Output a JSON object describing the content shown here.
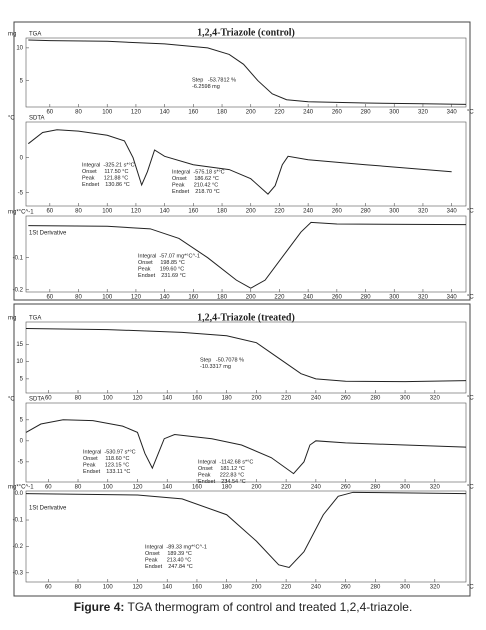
{
  "chart_data": [
    {
      "type": "line",
      "title": "1,2,4-Triazole (control)",
      "ylabel": "mg",
      "xlabel": "°C",
      "xlim": [
        43.4,
        350
      ],
      "xticks": [
        60,
        80,
        100,
        120,
        140,
        160,
        180,
        200,
        220,
        240,
        260,
        280,
        300,
        320,
        340
      ],
      "ylim": [
        1,
        11.5
      ],
      "yticks": [
        5,
        10
      ],
      "x": [
        45,
        60,
        100,
        140,
        170,
        185,
        195,
        205,
        215,
        225,
        240,
        280,
        320,
        350
      ],
      "series": [
        {
          "name": "TGA",
          "color": "#222222",
          "values": [
            11.2,
            11.1,
            11.0,
            10.6,
            10.0,
            9.0,
            7.5,
            5.0,
            3.0,
            2.1,
            1.8,
            1.6,
            1.5,
            1.4
          ]
        }
      ],
      "annotations": [
        [
          "Step   -53.7812 %",
          "-6.2598 mg"
        ]
      ]
    },
    {
      "type": "line",
      "ylabel": "°C",
      "xlabel": "°C",
      "xlim": [
        43.4,
        350
      ],
      "xticks": [
        60,
        80,
        100,
        120,
        140,
        160,
        180,
        200,
        220,
        240,
        260,
        280,
        300,
        320,
        340
      ],
      "ylim": [
        -6.9,
        5.1
      ],
      "yticks": [
        -5,
        0
      ],
      "x": [
        45,
        55,
        65,
        80,
        100,
        112,
        118,
        124,
        128,
        133,
        140,
        160,
        185,
        200,
        212,
        217,
        222,
        226,
        240,
        280,
        340
      ],
      "series": [
        {
          "name": "SDTA",
          "color": "#222222",
          "values": [
            2,
            3.6,
            4.0,
            3.8,
            3.2,
            2.4,
            0,
            -3.9,
            -2,
            1.1,
            0.2,
            -1,
            -1.7,
            -3,
            -5.2,
            -4,
            -1,
            0.2,
            -0.3,
            -1,
            -2
          ]
        }
      ],
      "annotations": [
        [
          "Integral  -325.21 s*°C",
          "Onset     117.50 °C",
          "Peak      121.88 °C",
          "Endset    130.86 °C"
        ],
        [
          "Integral  -575.18 s*°C",
          "Onset     186.62 °C",
          "Peak      210.42 °C",
          "Endset    218.70 °C"
        ]
      ]
    },
    {
      "type": "line",
      "ylabel": "mg*°C^-1",
      "xlabel": "°C",
      "xlim": [
        43.4,
        350
      ],
      "xticks": [
        60,
        80,
        100,
        120,
        140,
        160,
        180,
        200,
        220,
        240,
        260,
        280,
        300,
        320,
        340
      ],
      "ylim": [
        -0.207,
        0.03
      ],
      "yticks": [
        -0.2,
        -0.1
      ],
      "x": [
        45,
        100,
        130,
        150,
        170,
        190,
        200,
        210,
        225,
        235,
        242,
        260,
        350
      ],
      "series": [
        {
          "name": "1St Derivative",
          "color": "#222222",
          "values": [
            0,
            -0.002,
            -0.01,
            -0.04,
            -0.1,
            -0.17,
            -0.195,
            -0.17,
            -0.08,
            -0.02,
            0.01,
            0.005,
            0.003
          ]
        }
      ],
      "annotations": [
        [
          "Integral  -57.07 mg*°C^-1",
          "Onset     198.85 °C",
          "Peak      199.60 °C",
          "Endset    231.69 °C"
        ]
      ]
    },
    {
      "type": "line",
      "title": "1,2,4-Triazole (treated)",
      "ylabel": "mg",
      "xlabel": "°C",
      "xlim": [
        45,
        341
      ],
      "xticks": [
        60,
        80,
        100,
        120,
        140,
        160,
        180,
        200,
        220,
        240,
        260,
        280,
        300,
        320
      ],
      "ylim": [
        0.9,
        21.5
      ],
      "yticks": [
        5,
        10,
        15
      ],
      "x": [
        45,
        100,
        150,
        180,
        200,
        215,
        230,
        240,
        260,
        300,
        341
      ],
      "series": [
        {
          "name": "TGA",
          "color": "#222222",
          "values": [
            19.6,
            19.3,
            18.5,
            17.5,
            15.5,
            11,
            6.5,
            5,
            4.3,
            4.2,
            4.5
          ]
        }
      ],
      "annotations": [
        [
          "Step   -50.7078 %",
          "-10.3317 mg"
        ]
      ]
    },
    {
      "type": "line",
      "ylabel": "°C",
      "xlabel": "°C",
      "xlim": [
        45,
        341
      ],
      "xticks": [
        60,
        80,
        100,
        120,
        140,
        160,
        180,
        200,
        220,
        240,
        260,
        280,
        300,
        320
      ],
      "ylim": [
        -9.8,
        9
      ],
      "yticks": [
        -5,
        0,
        5
      ],
      "x": [
        45,
        55,
        70,
        90,
        110,
        120,
        125,
        130,
        134,
        138,
        145,
        170,
        190,
        210,
        225,
        232,
        236,
        240,
        260,
        300,
        341
      ],
      "series": [
        {
          "name": "SDTA",
          "color": "#222222",
          "values": [
            2,
            4,
            5,
            4.8,
            3.5,
            2,
            -3,
            -6.5,
            -3,
            0.5,
            1.5,
            0.5,
            -1,
            -4,
            -7.8,
            -5,
            -1,
            0,
            -0.5,
            -1,
            -1.5
          ]
        }
      ],
      "annotations": [
        [
          "Integral  -530.97 s*°C",
          "Onset     118.60 °C",
          "Peak      123.15 °C",
          "Endset    133.11 °C"
        ],
        [
          "Integral  -1142.68 s*°C",
          "Onset     181.12 °C",
          "Peak      222.83 °C",
          "Endset    234.54 °C"
        ]
      ]
    },
    {
      "type": "line",
      "ylabel": "mg*°C^-1",
      "xlabel": "°C",
      "xlim": [
        45,
        341
      ],
      "xticks": [
        60,
        80,
        100,
        120,
        140,
        160,
        180,
        200,
        220,
        240,
        260,
        280,
        300,
        320
      ],
      "ylim": [
        -0.335,
        0.01
      ],
      "yticks": [
        {
          "value": 0,
          "label": "0.0"
        },
        -0.1,
        -0.2,
        -0.3
      ],
      "x": [
        45,
        120,
        150,
        180,
        200,
        215,
        222,
        232,
        245,
        255,
        265,
        341
      ],
      "series": [
        {
          "name": "1St Derivative",
          "color": "#222222",
          "values": [
            0,
            -0.005,
            -0.02,
            -0.08,
            -0.18,
            -0.27,
            -0.28,
            -0.22,
            -0.08,
            -0.01,
            0.005,
            0
          ]
        }
      ],
      "annotations": [
        [
          "Integral  -89.33 mg*°C^-1",
          "Onset     189.39 °C",
          "Peak      213.40 °C",
          "Endset    247.84 °C"
        ]
      ]
    }
  ],
  "caption": {
    "label": "Figure 4:",
    "text": "TGA thermogram of control and treated 1,2,4-triazole."
  }
}
